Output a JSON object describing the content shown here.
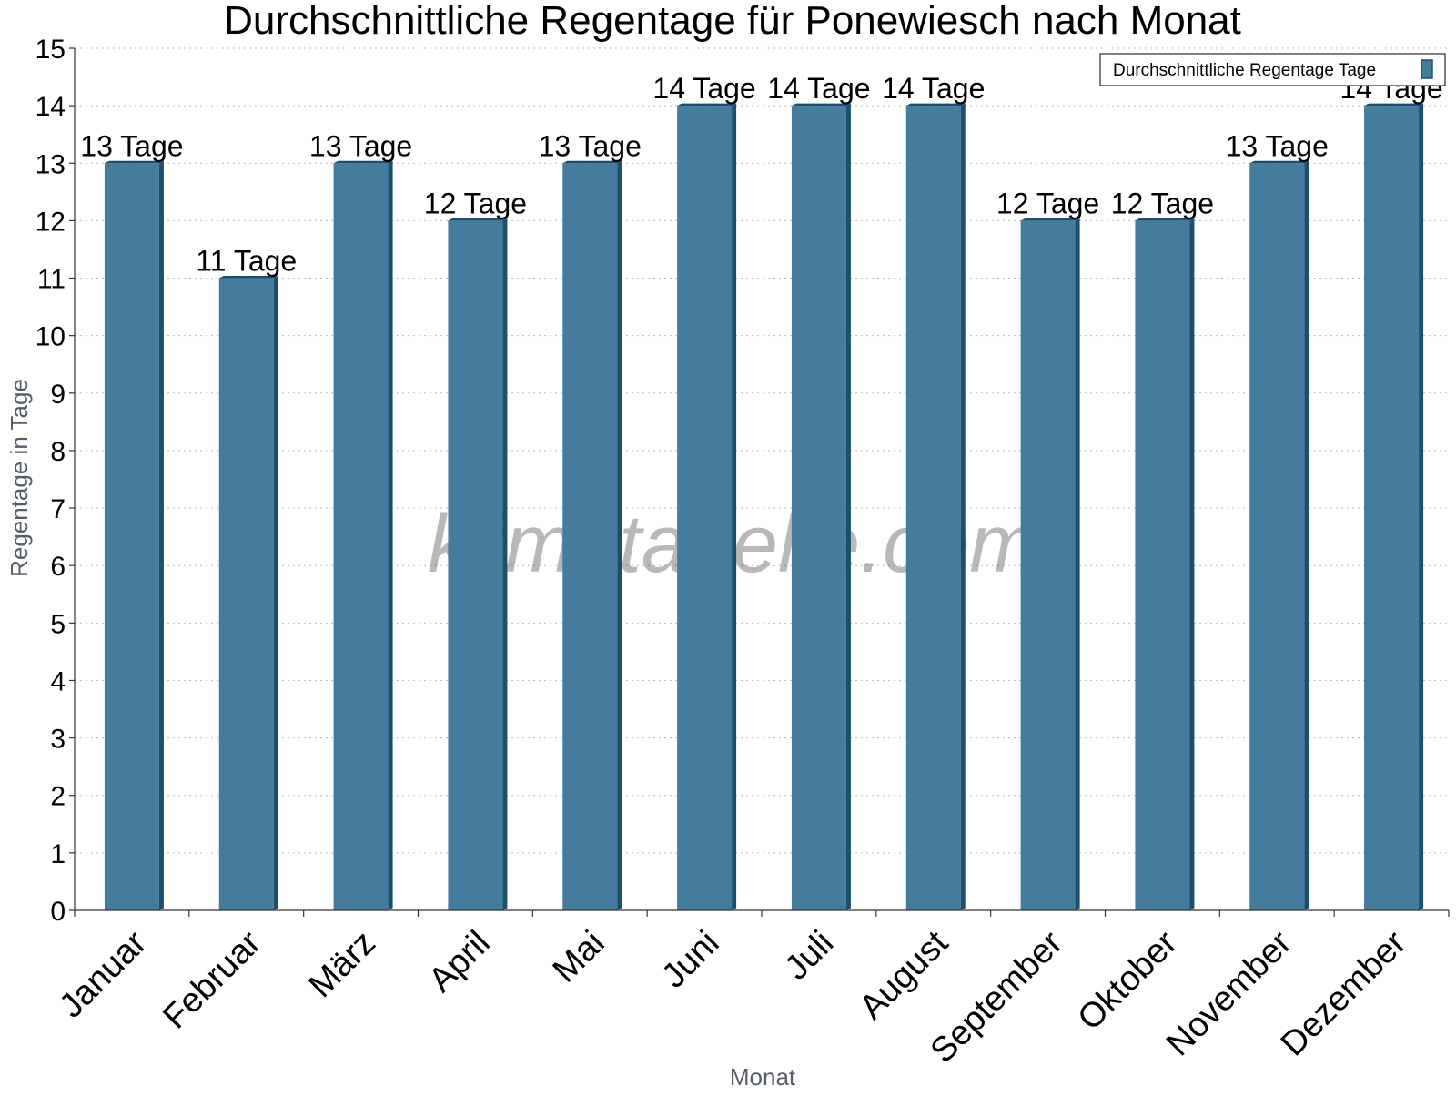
{
  "chart_data": {
    "type": "bar",
    "title": "Durchschnittliche Regentage für Ponewiesch nach Monat",
    "xlabel": "Monat",
    "ylabel": "Regentage in Tage",
    "ylim": [
      0,
      15
    ],
    "yticks": [
      "0",
      "1",
      "2",
      "3",
      "4",
      "5",
      "6",
      "7",
      "8",
      "9",
      "10",
      "11",
      "12",
      "13",
      "14",
      "15"
    ],
    "grid": "horizontal dotted",
    "legend_position": "top-right",
    "categories": [
      "Januar",
      "Februar",
      "März",
      "April",
      "Mai",
      "Juni",
      "Juli",
      "August",
      "September",
      "Oktober",
      "November",
      "Dezember"
    ],
    "series": [
      {
        "name": "Durchschnittliche Regentage Tage",
        "values": [
          13,
          11,
          13,
          12,
          13,
          14,
          14,
          14,
          12,
          12,
          13,
          14
        ],
        "labels": [
          "13 Tage",
          "11 Tage",
          "13 Tage",
          "12 Tage",
          "13 Tage",
          "14 Tage",
          "14 Tage",
          "14 Tage",
          "12 Tage",
          "12 Tage",
          "13 Tage",
          "14 Tage"
        ],
        "color": "#457b9d",
        "edge_color": "#1d4e6e"
      }
    ],
    "watermark": "klimatabelle.com"
  }
}
